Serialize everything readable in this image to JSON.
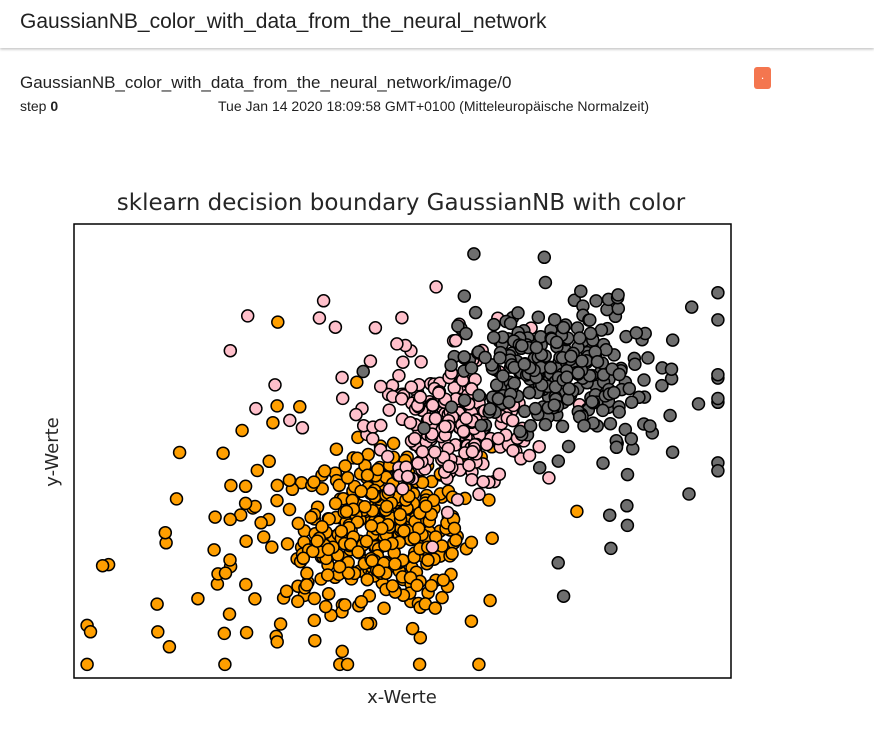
{
  "header": {
    "title": "GaussianNB_color_with_data_from_the_neural_network"
  },
  "card": {
    "tag": "GaussianNB_color_with_data_from_the_neural_network/image/0",
    "step_label": "step",
    "step_value": "0",
    "timestamp": "Tue Jan 14 2020 18:09:58 GMT+0100 (Mitteleuropäische Normalzeit)",
    "action_icon": "expand-icon",
    "action_label": "."
  },
  "colors": {
    "accent": "#f4764f",
    "class_orange": "#ff9f00",
    "class_pink": "#ffc0cb",
    "class_gray": "#6e6e6e"
  },
  "chart_data": {
    "type": "scatter",
    "title": "sklearn decision boundary GaussianNB with color",
    "xlabel": "x-Werte",
    "ylabel": "y-Werte",
    "xlim": [
      0,
      100
    ],
    "ylim": [
      0,
      100
    ],
    "grid": false,
    "axis_ticks": false,
    "series": [
      {
        "color": "#ff9f00",
        "clusters": [
          {
            "n": 330,
            "cx": 47,
            "cy": 33,
            "sx": 6.0,
            "sy": 8.0
          },
          {
            "n": 130,
            "cx": 38,
            "cy": 26,
            "sx": 16,
            "sy": 16
          }
        ]
      },
      {
        "color": "#ffc0cb",
        "clusters": [
          {
            "n": 220,
            "cx": 58,
            "cy": 55,
            "sx": 6.0,
            "sy": 6.5
          },
          {
            "n": 40,
            "cx": 50,
            "cy": 70,
            "sx": 9,
            "sy": 9
          }
        ]
      },
      {
        "color": "#6e6e6e",
        "clusters": [
          {
            "n": 240,
            "cx": 72,
            "cy": 68,
            "sx": 6.5,
            "sy": 6.5
          },
          {
            "n": 80,
            "cx": 80,
            "cy": 62,
            "sx": 12,
            "sy": 14
          }
        ]
      }
    ]
  }
}
